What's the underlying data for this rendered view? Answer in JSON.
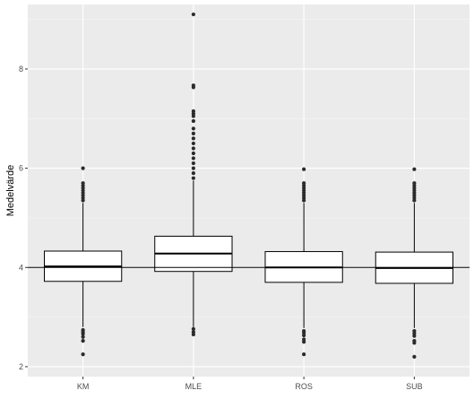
{
  "chart_data": {
    "type": "boxplot",
    "title": "",
    "xlabel": "",
    "ylabel": "Medelvärde",
    "ylim": [
      1.8,
      9.3
    ],
    "yticks": [
      2,
      4,
      6,
      8
    ],
    "ytick_labels": [
      "2",
      "4",
      "6",
      "8"
    ],
    "grid": true,
    "reference_line_y": 4,
    "categories": [
      "KM",
      "MLE",
      "ROS",
      "SUB"
    ],
    "boxes": [
      {
        "category": "KM",
        "q1": 3.72,
        "median": 4.02,
        "q3": 4.33,
        "whisker_low": 2.8,
        "whisker_high": 5.3,
        "outliers": [
          2.25,
          2.52,
          2.6,
          2.66,
          2.7,
          2.74,
          5.35,
          5.4,
          5.45,
          5.5,
          5.55,
          5.6,
          5.65,
          5.7,
          6.0
        ]
      },
      {
        "category": "MLE",
        "q1": 3.92,
        "median": 4.28,
        "q3": 4.63,
        "whisker_low": 2.8,
        "whisker_high": 5.75,
        "outliers": [
          2.65,
          2.7,
          2.76,
          5.8,
          5.9,
          6.0,
          6.1,
          6.2,
          6.3,
          6.4,
          6.5,
          6.6,
          6.7,
          6.8,
          6.95,
          7.05,
          7.1,
          7.15,
          7.63,
          7.67,
          9.1
        ]
      },
      {
        "category": "ROS",
        "q1": 3.7,
        "median": 4.0,
        "q3": 4.32,
        "whisker_low": 2.78,
        "whisker_high": 5.3,
        "outliers": [
          2.25,
          2.5,
          2.55,
          2.63,
          2.68,
          2.72,
          5.35,
          5.4,
          5.45,
          5.5,
          5.55,
          5.6,
          5.65,
          5.7,
          5.98
        ]
      },
      {
        "category": "SUB",
        "q1": 3.68,
        "median": 3.99,
        "q3": 4.31,
        "whisker_low": 2.78,
        "whisker_high": 5.3,
        "outliers": [
          2.2,
          2.48,
          2.52,
          2.62,
          2.67,
          2.72,
          5.35,
          5.4,
          5.45,
          5.5,
          5.55,
          5.6,
          5.65,
          5.7,
          5.98
        ]
      }
    ]
  },
  "colors": {
    "panel_bg": "#ebebeb",
    "grid_major": "#ffffff",
    "grid_minor": "#f5f5f5",
    "box_fill": "#ffffff",
    "box_stroke": "#000000",
    "outlier": "#2b2b2b",
    "reference_line": "#000000"
  }
}
